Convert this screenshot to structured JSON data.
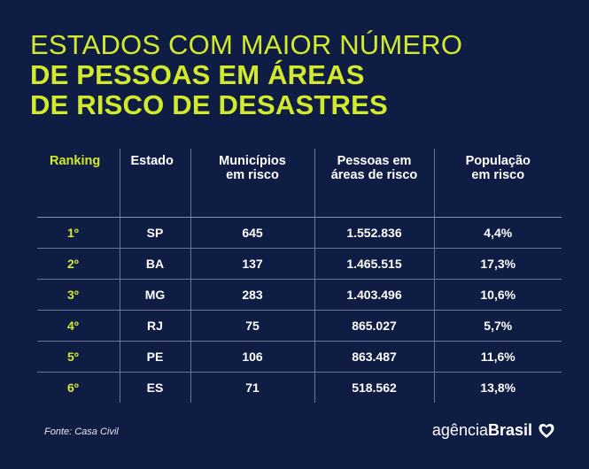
{
  "title": {
    "line1": "ESTADOS COM MAIOR NÚMERO",
    "line2": "DE PESSOAS EM ÁREAS",
    "line3": "DE RISCO DE DESASTRES"
  },
  "table": {
    "headers": {
      "ranking": "Ranking",
      "estado": "Estado",
      "municipios": [
        "Municípios",
        "em risco"
      ],
      "pessoas": [
        "Pessoas em",
        "áreas de risco"
      ],
      "populacao": [
        "População",
        "em risco"
      ]
    },
    "rows": [
      {
        "rank": "1º",
        "estado": "SP",
        "municipios": "645",
        "pessoas": "1.552.836",
        "populacao": "4,4%"
      },
      {
        "rank": "2º",
        "estado": "BA",
        "municipios": "137",
        "pessoas": "1.465.515",
        "populacao": "17,3%"
      },
      {
        "rank": "3º",
        "estado": "MG",
        "municipios": "283",
        "pessoas": "1.403.496",
        "populacao": "10,6%"
      },
      {
        "rank": "4º",
        "estado": "RJ",
        "municipios": "75",
        "pessoas": "865.027",
        "populacao": "5,7%"
      },
      {
        "rank": "5º",
        "estado": "PE",
        "municipios": "106",
        "pessoas": "863.487",
        "populacao": "11,6%"
      },
      {
        "rank": "6º",
        "estado": "ES",
        "municipios": "71",
        "pessoas": "518.562",
        "populacao": "13,8%"
      }
    ]
  },
  "footer": {
    "source": "Fonte: Casa Civil",
    "brand_light": "agência",
    "brand_bold": "Brasil",
    "brand_icon": "heart-shield-icon"
  },
  "colors": {
    "background": "#0f1c44",
    "accent": "#d3ea2c",
    "text": "#ffffff",
    "grid": "#6a7596"
  }
}
